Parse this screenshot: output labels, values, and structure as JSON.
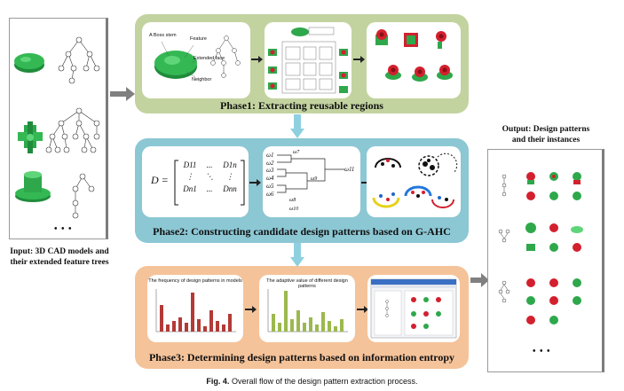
{
  "input": {
    "caption_line1": "Input: 3D CAD models and",
    "caption_line2": "their extended feature trees",
    "ellipsis": "• • •"
  },
  "output": {
    "title_line1": "Output: Design patterns",
    "title_line2": "and their instances",
    "ellipsis": "• • •"
  },
  "phase1": {
    "title": "Phase1: Extracting reusable regions",
    "labels": [
      "A Boss stem",
      "Feature",
      "Extended face",
      "Neighbor"
    ]
  },
  "phase2": {
    "title": "Phase2: Constructing candidate design patterns based on G-AHC",
    "matrix_lhs": "D =",
    "matrix_cells": [
      "D11",
      "...",
      "D1n",
      "⋮",
      "⋱",
      "⋮",
      "Dn1",
      "...",
      "Dnn"
    ],
    "dendro_labels": [
      "ω1",
      "ω2",
      "ω3",
      "ω4",
      "ω5",
      "ω6"
    ],
    "dendro_merge_labels": [
      "ω11",
      "ω7",
      "ω9",
      "ω8",
      "ω10"
    ]
  },
  "phase3": {
    "title": "Phase3: Determining design patterns based on information entropy",
    "chart1_title": "The frequency of design patterns in models",
    "chart2_title": "The adaptive value of different design patterns"
  },
  "figure_caption": {
    "label": "Fig. 4.",
    "text": "Overall flow of the design pattern extraction process."
  },
  "colors": {
    "phase1_bg": "#c3d3a0",
    "phase2_bg": "#8cc7d4",
    "phase3_bg": "#f5c39a",
    "arrow_gray": "#808080",
    "arrow_blue": "#8fd0e0",
    "model_green": "#2ea84b",
    "model_red": "#d3202e"
  }
}
